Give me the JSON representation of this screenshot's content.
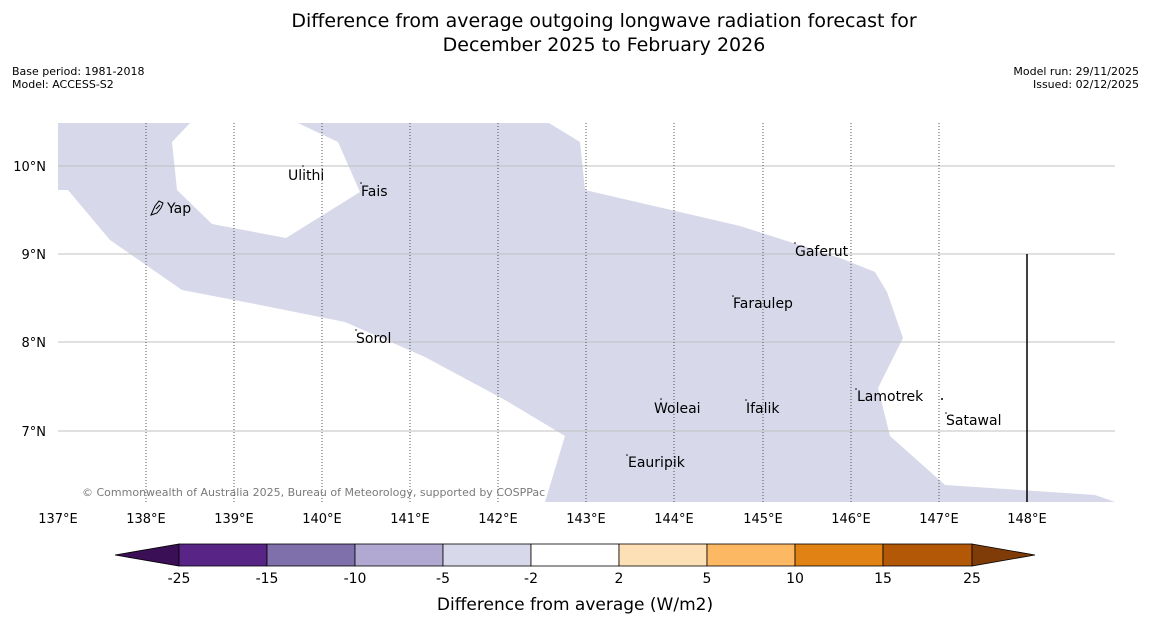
{
  "title_line1": "Difference from average outgoing longwave radiation forecast for",
  "title_line2": "December 2025 to February 2026",
  "meta": {
    "base_period": "Base period: 1981-2018",
    "model": "Model: ACCESS-S2",
    "model_run": "Model run: 29/11/2025",
    "issued": "Issued: 02/12/2025"
  },
  "map": {
    "lat_labels": [
      "10°N",
      "9°N",
      "8°N",
      "7°N"
    ],
    "lon_labels": [
      "137°E",
      "138°E",
      "139°E",
      "140°E",
      "141°E",
      "142°E",
      "143°E",
      "144°E",
      "145°E",
      "146°E",
      "147°E",
      "148°E"
    ],
    "places": [
      "Ulithi",
      "Fais",
      "Yap",
      "Gaferut",
      "Faraulep",
      "Sorol",
      "Woleai",
      "Ifalik",
      "Lamotrek",
      "Satawal",
      "Eauripik"
    ],
    "copyright": "© Commonwealth of Australia 2025, Bureau of Meteorology, supported by COSPPac",
    "fill_class": "-5 to -2",
    "fill_color": "#d7d8e9"
  },
  "legend": {
    "title": "Difference from average (W/m2)",
    "ticks": [
      "-25",
      "-15",
      "-10",
      "-5",
      "-2",
      "2",
      "5",
      "10",
      "15",
      "25"
    ],
    "colors": [
      "#3b0f56",
      "#582485",
      "#7f6fab",
      "#b1a9d2",
      "#d7d8e9",
      "#ffffff",
      "#fee0b6",
      "#fdb863",
      "#e08214",
      "#b35806",
      "#7f3b08"
    ]
  }
}
